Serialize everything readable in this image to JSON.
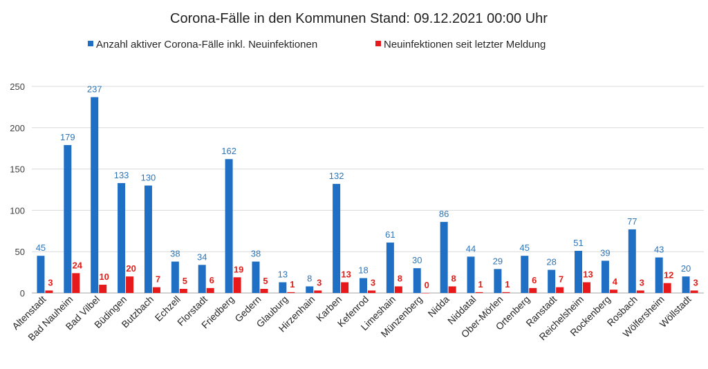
{
  "chart_data": {
    "type": "bar",
    "title": "Corona-Fälle in den Kommunen Stand: 09.12.2021 00:00 Uhr",
    "xlabel": "",
    "ylabel": "",
    "ylim": [
      0,
      250
    ],
    "yticks": [
      0,
      50,
      100,
      150,
      200,
      250
    ],
    "grid": true,
    "legend_position": "top",
    "colors": {
      "active": "#1f6fc5",
      "new": "#e8191b",
      "active_label": "#2e75b6",
      "new_label": "#e0201b"
    },
    "categories": [
      "Altenstadt",
      "Bad Nauheim",
      "Bad Vilbel",
      "Büdingen",
      "Butzbach",
      "Echzell",
      "Florstadt",
      "Friedberg",
      "Gedern",
      "Glauburg",
      "Hirzenhain",
      "Karben",
      "Kefenrod",
      "Limeshain",
      "Münzenberg",
      "Nidda",
      "Niddatal",
      "Ober-Mörlen",
      "Ortenberg",
      "Ranstadt",
      "Reichelsheim",
      "Rockenberg",
      "Rosbach",
      "Wölfersheim",
      "Wöllstadt"
    ],
    "series": [
      {
        "name": "Anzahl aktiver Corona-Fälle inkl. Neuinfektionen",
        "values": [
          45,
          179,
          237,
          133,
          130,
          38,
          34,
          162,
          38,
          13,
          8,
          132,
          18,
          61,
          30,
          86,
          44,
          29,
          45,
          28,
          51,
          39,
          77,
          43,
          20
        ]
      },
      {
        "name": "Neuinfektionen seit letzter Meldung",
        "values": [
          3,
          24,
          10,
          20,
          7,
          5,
          6,
          19,
          5,
          1,
          3,
          13,
          3,
          8,
          0,
          8,
          1,
          1,
          6,
          7,
          13,
          4,
          3,
          12,
          3
        ]
      }
    ]
  }
}
